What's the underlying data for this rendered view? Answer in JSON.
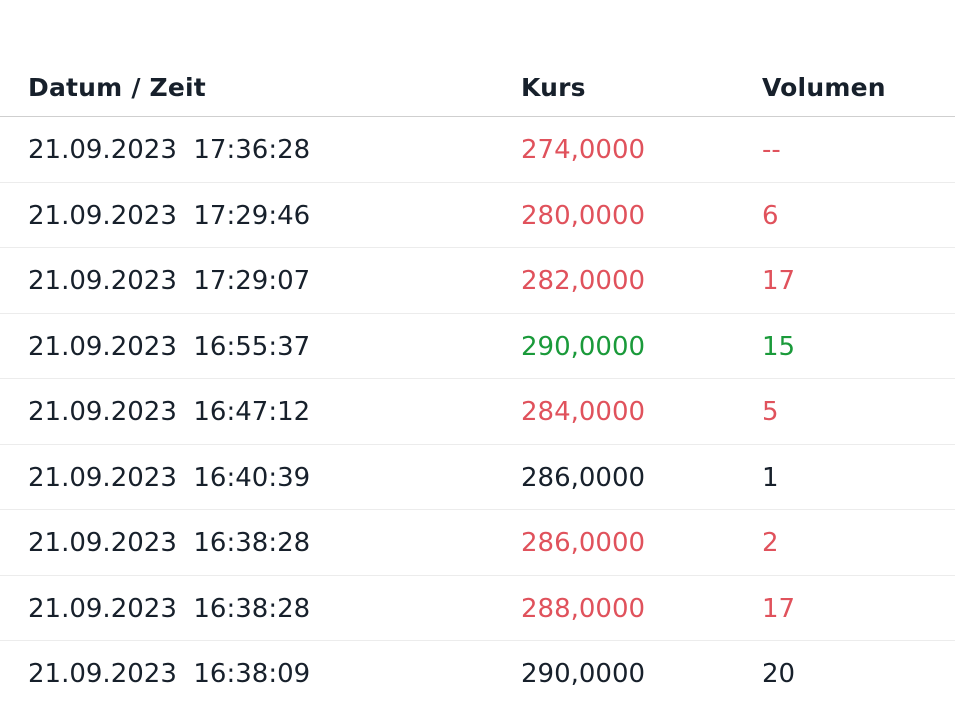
{
  "colors": {
    "down": "#e0525c",
    "up": "#1a9a3a",
    "neutral": "#17202b"
  },
  "table": {
    "headers": {
      "datetime": "Datum / Zeit",
      "price": "Kurs",
      "volume": "Volumen"
    },
    "rows": [
      {
        "datetime": "21.09.2023  17:36:28",
        "price": "274,0000",
        "volume": "--",
        "trend": "down"
      },
      {
        "datetime": "21.09.2023  17:29:46",
        "price": "280,0000",
        "volume": "6",
        "trend": "down"
      },
      {
        "datetime": "21.09.2023  17:29:07",
        "price": "282,0000",
        "volume": "17",
        "trend": "down"
      },
      {
        "datetime": "21.09.2023  16:55:37",
        "price": "290,0000",
        "volume": "15",
        "trend": "up"
      },
      {
        "datetime": "21.09.2023  16:47:12",
        "price": "284,0000",
        "volume": "5",
        "trend": "down"
      },
      {
        "datetime": "21.09.2023  16:40:39",
        "price": "286,0000",
        "volume": "1",
        "trend": "neutral"
      },
      {
        "datetime": "21.09.2023  16:38:28",
        "price": "286,0000",
        "volume": "2",
        "trend": "down"
      },
      {
        "datetime": "21.09.2023  16:38:28",
        "price": "288,0000",
        "volume": "17",
        "trend": "down"
      },
      {
        "datetime": "21.09.2023  16:38:09",
        "price": "290,0000",
        "volume": "20",
        "trend": "neutral"
      }
    ]
  }
}
